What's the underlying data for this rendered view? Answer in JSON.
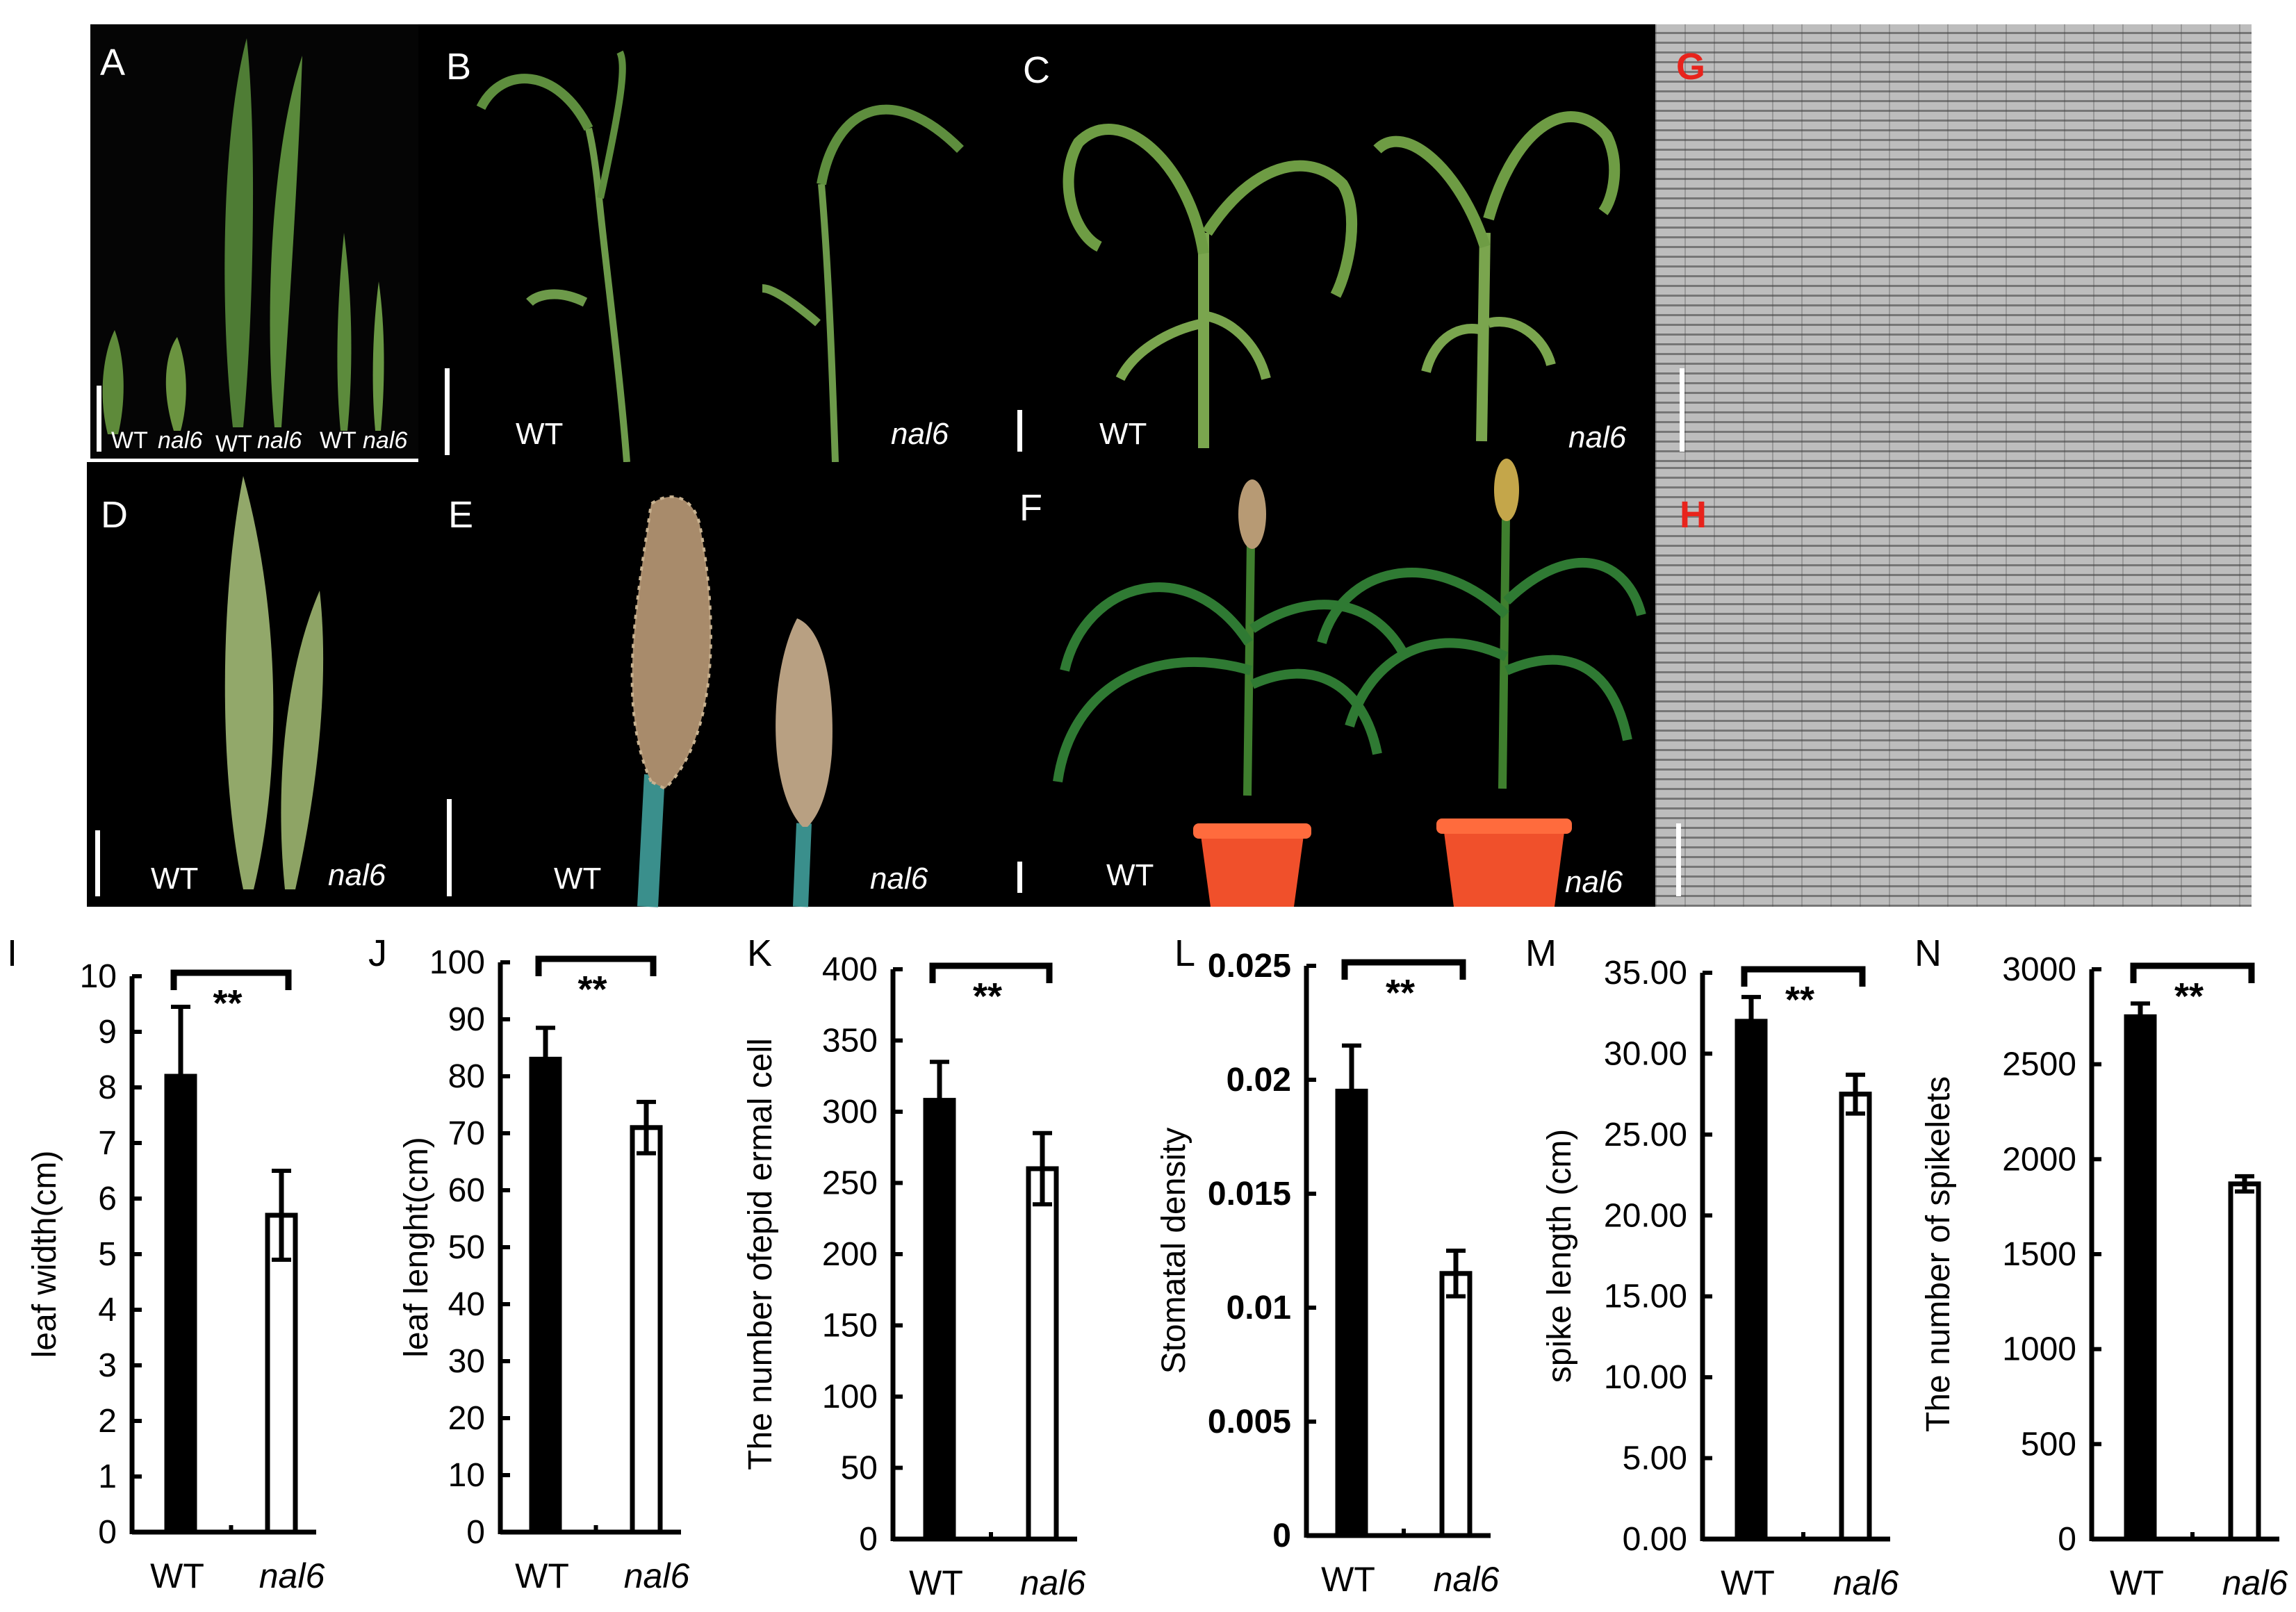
{
  "panels": {
    "A": {
      "label": "A",
      "captions": [
        "WT",
        "nal6",
        "WT",
        "nal6",
        "WT",
        "nal6"
      ]
    },
    "B": {
      "label": "B",
      "captions": [
        "WT",
        "nal6"
      ]
    },
    "C": {
      "label": "C",
      "captions": [
        "WT",
        "nal6"
      ]
    },
    "D": {
      "label": "D",
      "captions": [
        "WT",
        "nal6"
      ]
    },
    "E": {
      "label": "E",
      "captions": [
        "WT",
        "nal6"
      ]
    },
    "F": {
      "label": "F",
      "captions": [
        "WT",
        "nal6"
      ]
    },
    "G": {
      "label": "G"
    },
    "H": {
      "label": "H"
    }
  },
  "colors": {
    "wt_bar": "#000000",
    "nal6_bar": "#ffffff",
    "significance_red": "#e8231c"
  },
  "chart_data": [
    {
      "id": "I",
      "type": "bar",
      "panel_label": "I",
      "categories": [
        "WT",
        "nal6"
      ],
      "values": [
        8.2,
        5.7
      ],
      "errors": [
        1.25,
        0.8
      ],
      "ylabel": "leaf width(cm)",
      "ylim": [
        0,
        10
      ],
      "yticks": [
        "0",
        "1",
        "2",
        "3",
        "4",
        "5",
        "6",
        "7",
        "8",
        "9",
        "10"
      ],
      "significance": "**"
    },
    {
      "id": "J",
      "type": "bar",
      "panel_label": "J",
      "categories": [
        "WT",
        "nal6"
      ],
      "values": [
        83,
        71
      ],
      "errors": [
        5.5,
        4.5
      ],
      "ylabel": "leaf lenght(cm)",
      "ylim": [
        0,
        100
      ],
      "yticks": [
        "0",
        "10",
        "20",
        "30",
        "40",
        "50",
        "60",
        "70",
        "80",
        "90",
        "100"
      ],
      "significance": "**"
    },
    {
      "id": "K",
      "type": "bar",
      "panel_label": "K",
      "categories": [
        "WT",
        "nal6"
      ],
      "values": [
        308,
        260
      ],
      "errors": [
        27,
        25
      ],
      "ylabel": "The number ofepid ermal cell",
      "ylim": [
        0,
        400
      ],
      "yticks": [
        "0",
        "50",
        "100",
        "150",
        "200",
        "250",
        "300",
        "350",
        "400"
      ],
      "significance": "**"
    },
    {
      "id": "L",
      "type": "bar",
      "panel_label": "L",
      "categories": [
        "WT",
        "nal6"
      ],
      "values": [
        0.0195,
        0.0115
      ],
      "errors": [
        0.002,
        0.001
      ],
      "ylabel": "Stomatal density",
      "ylim": [
        0,
        0.025
      ],
      "yticks": [
        "0",
        "0.005",
        "0.01",
        "0.015",
        "0.02",
        "0.025"
      ],
      "significance": "**"
    },
    {
      "id": "M",
      "type": "bar",
      "panel_label": "M",
      "categories": [
        "WT",
        "nal6"
      ],
      "values": [
        32.0,
        27.5
      ],
      "errors": [
        1.5,
        1.2
      ],
      "ylabel": "spike length  (cm)",
      "ylim": [
        0,
        35
      ],
      "yticks": [
        "0.00",
        "5.00",
        "10.00",
        "15.00",
        "20.00",
        "25.00",
        "30.00",
        "35.00"
      ],
      "significance": "**"
    },
    {
      "id": "N",
      "type": "bar",
      "panel_label": "N",
      "categories": [
        "WT",
        "nal6"
      ],
      "values": [
        2750,
        1870
      ],
      "errors": [
        70,
        40
      ],
      "ylabel": "The number of spikelets",
      "ylim": [
        0,
        3000
      ],
      "yticks": [
        "0",
        "500",
        "1000",
        "1500",
        "2000",
        "2500",
        "3000"
      ],
      "significance": "**"
    }
  ]
}
